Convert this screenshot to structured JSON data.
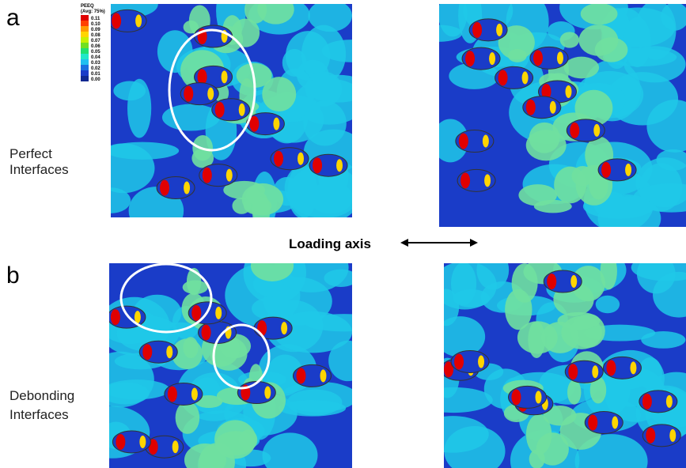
{
  "panels": [
    {
      "label": "a",
      "caption": [
        "Perfect",
        "Interfaces"
      ]
    },
    {
      "label": "b",
      "caption": [
        "Debonding",
        "Interfaces"
      ]
    }
  ],
  "loading_axis": "Loading axis",
  "legend": {
    "title": "PEEQ",
    "subtitle": "(Avg: 75%)",
    "values": [
      "0.11",
      "0.10",
      "0.09",
      "0.08",
      "0.07",
      "0.06",
      "0.05",
      "0.04",
      "0.03",
      "0.02",
      "0.01",
      "0.00"
    ]
  }
}
